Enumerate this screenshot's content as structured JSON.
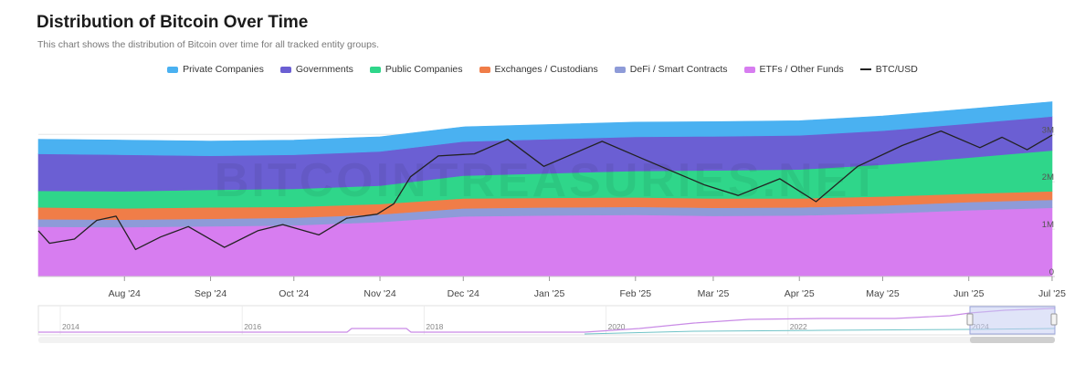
{
  "header": {
    "title": "Distribution of Bitcoin Over Time",
    "subtitle": "This chart shows the distribution of Bitcoin over time for all tracked entity groups."
  },
  "watermark": "BITCOINTREASURIES.NET",
  "legend": [
    {
      "label": "Private Companies",
      "color": "#4ab1f1",
      "kind": "area"
    },
    {
      "label": "Governments",
      "color": "#6b5fd3",
      "kind": "area"
    },
    {
      "label": "Public Companies",
      "color": "#2fd68a",
      "kind": "area"
    },
    {
      "label": "Exchanges / Custodians",
      "color": "#f07d48",
      "kind": "area"
    },
    {
      "label": "DeFi / Smart Contracts",
      "color": "#8e9bd8",
      "kind": "area"
    },
    {
      "label": "ETFs / Other Funds",
      "color": "#d77df0",
      "kind": "area"
    },
    {
      "label": "BTC/USD",
      "color": "#222222",
      "kind": "line"
    }
  ],
  "chart_data": {
    "type": "area",
    "stacked": true,
    "title": "Distribution of Bitcoin Over Time",
    "x_start": "2024-07-01",
    "x_end": "2025-07-02",
    "x_ticks": [
      "Aug '24",
      "Sep '24",
      "Oct '24",
      "Nov '24",
      "Dec '24",
      "Jan '25",
      "Feb '25",
      "Mar '25",
      "Apr '25",
      "May '25",
      "Jun '25",
      "Jul '25"
    ],
    "x_tick_dates": [
      "2024-08-01",
      "2024-09-01",
      "2024-10-01",
      "2024-11-01",
      "2024-12-01",
      "2025-01-01",
      "2025-02-01",
      "2025-03-01",
      "2025-04-01",
      "2025-05-01",
      "2025-06-01",
      "2025-07-01"
    ],
    "y_ticks": [
      "0",
      "1M",
      "2M",
      "3M"
    ],
    "y_tick_values": [
      0,
      1000000,
      2000000,
      3000000
    ],
    "ylim": [
      0,
      3950000
    ],
    "grid": true,
    "legend_position": "top",
    "x": [
      "2024-07-01",
      "2024-08-01",
      "2024-09-01",
      "2024-10-01",
      "2024-11-01",
      "2024-12-01",
      "2025-01-01",
      "2025-02-01",
      "2025-03-01",
      "2025-04-01",
      "2025-05-01",
      "2025-06-01",
      "2025-07-01"
    ],
    "series": [
      {
        "name": "ETFs / Other Funds",
        "color": "#d77df0",
        "values": [
          1050000,
          1040000,
          1060000,
          1080000,
          1150000,
          1270000,
          1290000,
          1300000,
          1280000,
          1290000,
          1330000,
          1400000,
          1450000
        ]
      },
      {
        "name": "DeFi / Smart Contracts",
        "color": "#8e9bd8",
        "values": [
          160000,
          160000,
          160000,
          160000,
          160000,
          170000,
          170000,
          170000,
          170000,
          170000,
          170000,
          170000,
          170000
        ]
      },
      {
        "name": "Exchanges / Custodians",
        "color": "#f07d48",
        "values": [
          250000,
          240000,
          240000,
          230000,
          220000,
          210000,
          200000,
          200000,
          200000,
          190000,
          190000,
          180000,
          180000
        ]
      },
      {
        "name": "Public Companies",
        "color": "#2fd68a",
        "values": [
          350000,
          360000,
          370000,
          380000,
          390000,
          480000,
          520000,
          560000,
          590000,
          610000,
          670000,
          760000,
          860000
        ]
      },
      {
        "name": "Governments",
        "color": "#6b5fd3",
        "values": [
          780000,
          770000,
          720000,
          720000,
          720000,
          720000,
          720000,
          720000,
          720000,
          720000,
          720000,
          720000,
          720000
        ]
      },
      {
        "name": "Private Companies",
        "color": "#4ab1f1",
        "values": [
          310000,
          310000,
          310000,
          310000,
          310000,
          310000,
          310000,
          310000,
          310000,
          310000,
          310000,
          310000,
          310000
        ]
      }
    ],
    "btc_usd": {
      "name": "BTC/USD",
      "color": "#222222",
      "axis": "independent",
      "x": [
        "2024-07-01",
        "2024-07-05",
        "2024-07-14",
        "2024-07-22",
        "2024-07-29",
        "2024-08-05",
        "2024-08-14",
        "2024-08-24",
        "2024-09-06",
        "2024-09-18",
        "2024-09-27",
        "2024-10-10",
        "2024-10-20",
        "2024-10-31",
        "2024-11-06",
        "2024-11-12",
        "2024-11-22",
        "2024-12-05",
        "2024-12-17",
        "2024-12-30",
        "2025-01-20",
        "2025-02-03",
        "2025-02-26",
        "2025-03-10",
        "2025-03-25",
        "2025-04-07",
        "2025-04-22",
        "2025-05-08",
        "2025-05-22",
        "2025-06-05",
        "2025-06-13",
        "2025-06-22",
        "2025-07-01"
      ],
      "values": [
        62000,
        56000,
        58000,
        67000,
        69000,
        53000,
        59000,
        64000,
        54000,
        62000,
        65000,
        60000,
        68000,
        70000,
        75000,
        88000,
        98000,
        99000,
        106000,
        93000,
        105000,
        97000,
        84000,
        79000,
        87000,
        76000,
        93000,
        103000,
        110000,
        102000,
        107000,
        101000,
        108000
      ]
    },
    "navigator": {
      "x_ticks": [
        "2014",
        "2016",
        "2018",
        "2020",
        "2022",
        "2024"
      ]
    }
  }
}
